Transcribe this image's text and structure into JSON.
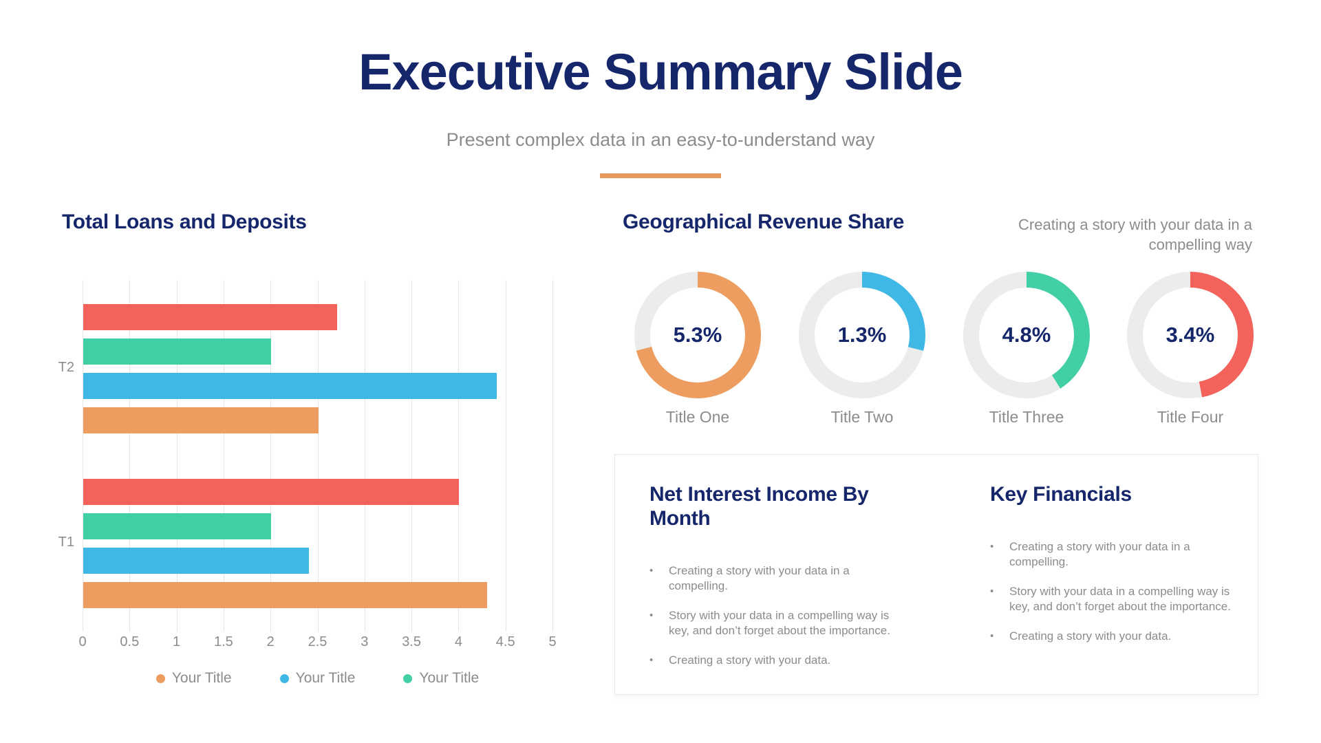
{
  "header": {
    "title": "Executive Summary Slide",
    "subtitle": "Present complex data in an easy-to-understand way"
  },
  "chart_data": [
    {
      "type": "bar",
      "orientation": "horizontal",
      "title": "Total Loans and Deposits",
      "categories": [
        "T2",
        "T1"
      ],
      "series": [
        {
          "name": "Your Title",
          "color": "#F3625B",
          "values": [
            2.7,
            4.0
          ]
        },
        {
          "name": "Your Title",
          "color": "#43CFA5",
          "values": [
            2.0,
            2.0
          ]
        },
        {
          "name": "Your Title",
          "color": "#3FB8E5",
          "values": [
            4.4,
            2.4
          ]
        },
        {
          "name": "Your Title",
          "color": "#EC9D5F",
          "values": [
            2.5,
            4.3
          ]
        }
      ],
      "xlim": [
        0,
        5
      ],
      "x_ticks": [
        "0",
        "0.5",
        "1",
        "1.5",
        "2",
        "2.5",
        "3",
        "3.5",
        "4",
        "4.5",
        "5"
      ],
      "grid": true,
      "legend_position": "bottom",
      "legend": [
        {
          "label": "Your Title",
          "color": "#EC9D5F"
        },
        {
          "label": "Your Title",
          "color": "#3FB8E5"
        },
        {
          "label": "Your Title",
          "color": "#43CFA5"
        }
      ]
    },
    {
      "type": "pie",
      "subtype": "donut-gauges",
      "title": "Geographical Revenue Share",
      "note": "Creating a story with your data in a compelling way",
      "track_color": "#ECECEC",
      "items": [
        {
          "value_label": "5.3%",
          "fill_fraction": 0.71,
          "color": "#EC9D5F",
          "title": "Title One"
        },
        {
          "value_label": "1.3%",
          "fill_fraction": 0.29,
          "color": "#3FB8E5",
          "title": "Title Two"
        },
        {
          "value_label": "4.8%",
          "fill_fraction": 0.41,
          "color": "#43CFA5",
          "title": "Title Three"
        },
        {
          "value_label": "3.4%",
          "fill_fraction": 0.47,
          "color": "#F3625B",
          "title": "Title Four"
        }
      ]
    }
  ],
  "panel": {
    "columns": [
      {
        "heading": "Net Interest Income By Month",
        "bullets": [
          "Creating a story with your data in a compelling.",
          "Story with your data in a compelling way is key, and don’t forget about the importance.",
          "Creating a story with your data."
        ]
      },
      {
        "heading": "Key Financials",
        "bullets": [
          "Creating a story with your data in a compelling.",
          "Story with your data in a compelling way is key, and don’t forget about the importance.",
          "Creating a story with your data."
        ]
      }
    ]
  },
  "colors": {
    "navy": "#16266B",
    "gray": "#8C8C8C",
    "accent_orange": "#E89A5D"
  }
}
